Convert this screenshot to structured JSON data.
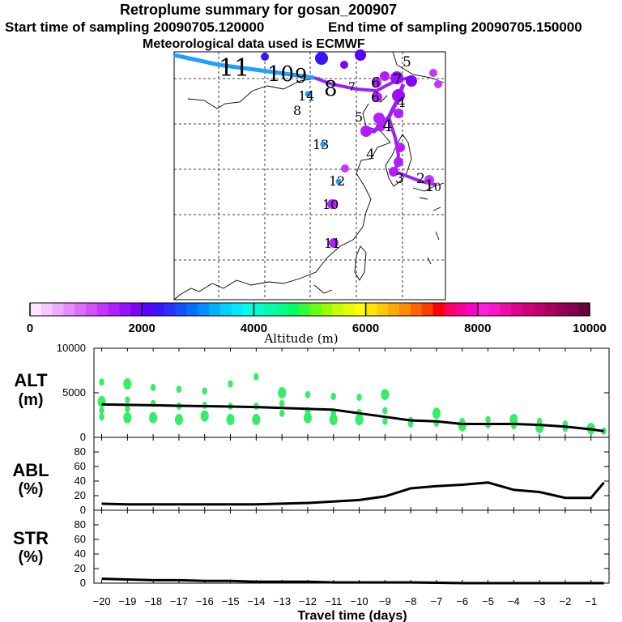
{
  "header": {
    "title": "Retroplume summary for gosan_200907",
    "start_label": "Start time of sampling 20090705.120000",
    "end_label": "End time of sampling 20090705.150000",
    "met_label": "Meteorological data used is ECMWF"
  },
  "colorbar": {
    "label": "Altitude (m)",
    "min": 0,
    "max": 10000,
    "tick_values": [
      0,
      2000,
      4000,
      6000,
      8000,
      10000
    ],
    "tick_labels": [
      "0",
      "2000",
      "4000",
      "6000",
      "8000",
      "10000"
    ],
    "colors": [
      "#ffe6ff",
      "#f5c8ff",
      "#eeaaff",
      "#e58cff",
      "#dc6eff",
      "#d250ff",
      "#c437ff",
      "#b21eff",
      "#9b0fff",
      "#8000ff",
      "#5a00ff",
      "#3c14ff",
      "#2832ff",
      "#1450ff",
      "#0070ff",
      "#0090ff",
      "#00b0ff",
      "#00d0ff",
      "#00eaff",
      "#00ffe6",
      "#00ffc8",
      "#00ffaa",
      "#00ff8c",
      "#00ff64",
      "#32ff32",
      "#64ff14",
      "#96ff00",
      "#c8ff00",
      "#e6ff00",
      "#ffff00",
      "#ffe600",
      "#ffc800",
      "#ffaa00",
      "#ff8c00",
      "#ff6400",
      "#ff3c00",
      "#ff0000",
      "#ff0064",
      "#ff0096",
      "#ff00c8",
      "#ff1edc",
      "#ff14c8",
      "#f00aaa",
      "#e1008c",
      "#d20078",
      "#be006e",
      "#aa005a",
      "#96005a",
      "#820050",
      "#6e003c"
    ]
  },
  "map": {
    "trajectory_colors": {
      "early_segment": "#1ea0ff",
      "late_segment": "#9b1fff"
    },
    "day_labels": [
      "11",
      "10",
      "9",
      "8",
      "14",
      "13",
      "12",
      "10",
      "11",
      "8",
      "7",
      "6",
      "5",
      "4",
      "3",
      "2",
      "1",
      "0"
    ]
  },
  "chart_data": [
    {
      "type": "line",
      "title": "ALT (m)",
      "ylabel": "ALT (m)",
      "x": [
        -20,
        -19,
        -18,
        -17,
        -16,
        -15,
        -14,
        -13,
        -12,
        -11,
        -10,
        -9,
        -8,
        -7,
        -6,
        -5,
        -4,
        -3,
        -2,
        -1,
        -0.5
      ],
      "series": [
        {
          "name": "median altitude",
          "values": [
            3700,
            3650,
            3600,
            3550,
            3500,
            3450,
            3400,
            3300,
            3200,
            3100,
            2700,
            2300,
            1900,
            1800,
            1500,
            1500,
            1500,
            1400,
            1200,
            900,
            700
          ]
        }
      ],
      "cloud_series": {
        "name": "altitude cluster points",
        "x": [
          -20,
          -20,
          -20,
          -20,
          -19,
          -19,
          -19,
          -19,
          -18,
          -18,
          -18,
          -17,
          -17,
          -17,
          -16,
          -16,
          -16,
          -15,
          -15,
          -15,
          -14,
          -14,
          -14,
          -13,
          -13,
          -13,
          -12,
          -12,
          -12,
          -11,
          -11,
          -11,
          -10,
          -10,
          -10,
          -9,
          -9,
          -9,
          -8,
          -8,
          -7,
          -7,
          -6,
          -6,
          -5,
          -5,
          -4,
          -4,
          -3,
          -3,
          -2,
          -2,
          -1,
          -1,
          -0.5
        ],
        "y": [
          6200,
          4000,
          3000,
          2300,
          6000,
          4200,
          3200,
          2200,
          5600,
          3800,
          2200,
          5400,
          3500,
          2000,
          5200,
          3600,
          2400,
          6000,
          3500,
          2000,
          6800,
          3500,
          2000,
          3800,
          2700,
          5000,
          4800,
          3000,
          2200,
          4600,
          2700,
          2000,
          4500,
          2800,
          2000,
          3000,
          1800,
          4800,
          1900,
          1500,
          2700,
          1600,
          1800,
          1300,
          2000,
          1400,
          2000,
          1300,
          1800,
          1100,
          1500,
          1000,
          1000,
          700,
          700
        ],
        "color": "#33ee66"
      },
      "ylim": [
        0,
        10000
      ],
      "yticks": [
        0,
        5000,
        10000
      ]
    },
    {
      "type": "line",
      "title": "ABL (%)",
      "ylabel": "ABL (%)",
      "x": [
        -20,
        -19,
        -18,
        -17,
        -16,
        -15,
        -14,
        -13,
        -12,
        -11,
        -10,
        -9,
        -8,
        -7,
        -6,
        -5,
        -4,
        -3,
        -2,
        -1,
        -0.5
      ],
      "series": [
        {
          "name": "fraction in ABL",
          "values": [
            9,
            8,
            8,
            8,
            8,
            8,
            8,
            9,
            10,
            12,
            14,
            19,
            30,
            33,
            35,
            38,
            28,
            25,
            17,
            17,
            38
          ]
        }
      ],
      "ylim": [
        0,
        100
      ],
      "yticks": [
        0,
        20,
        40,
        60,
        80
      ]
    },
    {
      "type": "line",
      "title": "STR (%)",
      "ylabel": "STR (%)",
      "x": [
        -20,
        -19,
        -18,
        -17,
        -16,
        -15,
        -14,
        -13,
        -12,
        -11,
        -10,
        -9,
        -8,
        -7,
        -6,
        -5,
        -4,
        -3,
        -2,
        -1,
        -0.5
      ],
      "series": [
        {
          "name": "fraction in stratosphere",
          "values": [
            6,
            5,
            4,
            4,
            3,
            3,
            2,
            2,
            2,
            1,
            1,
            1,
            1,
            0.5,
            0,
            0,
            0,
            0,
            0,
            0,
            0
          ]
        }
      ],
      "ylim": [
        0,
        100
      ],
      "yticks": [
        0,
        20,
        40,
        60,
        80
      ],
      "xlabel": "Travel time (days)",
      "xticks": [
        -20,
        -19,
        -18,
        -17,
        -16,
        -15,
        -14,
        -13,
        -12,
        -11,
        -10,
        -9,
        -8,
        -7,
        -6,
        -5,
        -4,
        -3,
        -2,
        -1
      ],
      "xtick_labels": [
        "−20",
        "−19",
        "−18",
        "−17",
        "−16",
        "−15",
        "−14",
        "−13",
        "−12",
        "−11",
        "−10",
        "−9",
        "−8",
        "−7",
        "−6",
        "−5",
        "−4",
        "−3",
        "−2",
        "−1"
      ]
    }
  ]
}
